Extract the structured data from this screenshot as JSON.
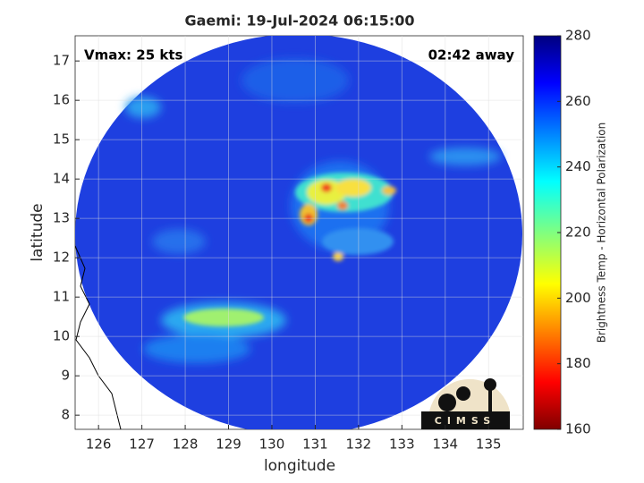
{
  "chart_data": {
    "type": "map",
    "title": "Gaemi: 19-Jul-2024 06:15:00",
    "xlabel": "longitude",
    "ylabel": "latitude",
    "xlim": [
      125.46,
      135.8
    ],
    "xticks": [
      126,
      127,
      128,
      129,
      130,
      131,
      132,
      133,
      134,
      135
    ],
    "ylim": [
      7.64,
      17.64
    ],
    "yticks": [
      8,
      9,
      10,
      11,
      12,
      13,
      14,
      15,
      16,
      17
    ],
    "grid": true,
    "annotations": [
      "Vmax: 25 kts",
      "02:42 away"
    ],
    "logo": "CIMSS",
    "colorbar": {
      "label": "Brightness Temp - Horizontal Polarization",
      "colormap": "jet",
      "lim": [
        160,
        280
      ],
      "ticks": [
        160,
        180,
        200,
        220,
        240,
        260,
        280
      ]
    }
  }
}
